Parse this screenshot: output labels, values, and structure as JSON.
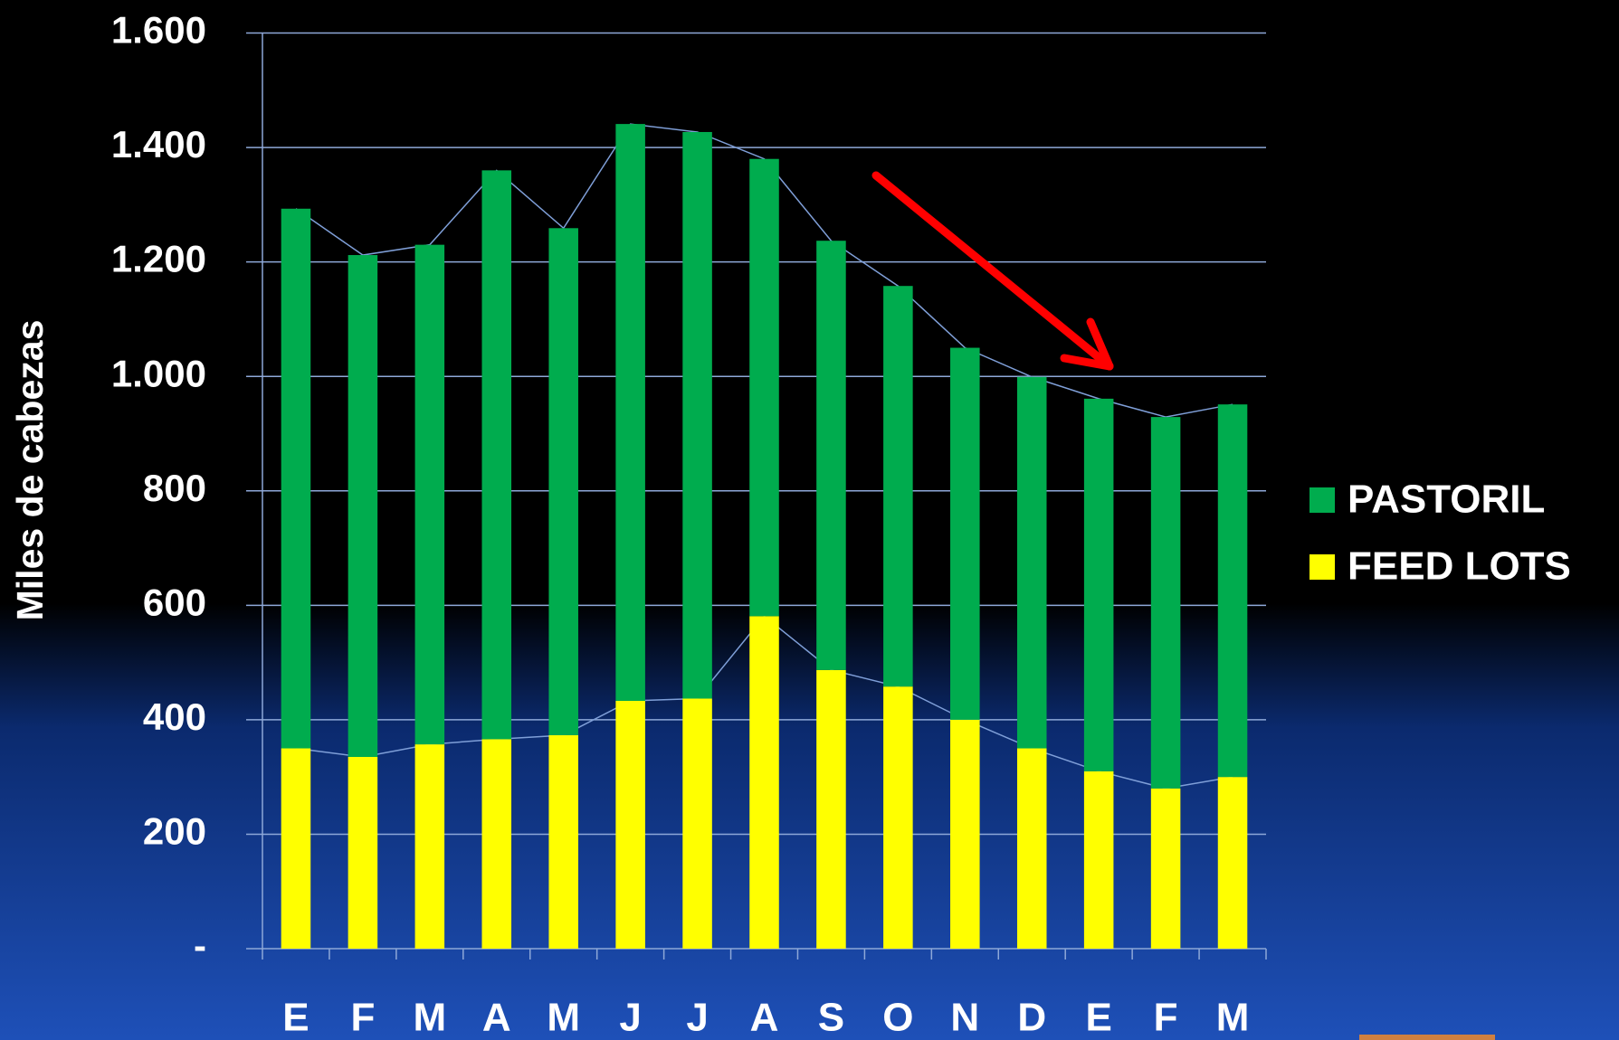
{
  "chart_data": {
    "type": "bar",
    "stacked": true,
    "ylabel": "Miles de cabezas",
    "categories": [
      "E",
      "F",
      "M",
      "A",
      "M",
      "J",
      "J",
      "A",
      "S",
      "O",
      "N",
      "D",
      "E",
      "F",
      "M"
    ],
    "series": [
      {
        "name": "FEED LOTS",
        "color": "#ffff00",
        "values": [
          350,
          335,
          357,
          366,
          373,
          433,
          437,
          581,
          487,
          458,
          400,
          350,
          310,
          280,
          300
        ]
      },
      {
        "name": "PASTORIL",
        "color": "#00ac4e",
        "values": [
          943,
          877,
          873,
          994,
          886,
          1008,
          990,
          799,
          750,
          700,
          650,
          649,
          651,
          649,
          651
        ]
      }
    ],
    "ylim": [
      0,
      1600
    ],
    "yticks": [
      {
        "value": 0,
        "label": "-"
      },
      200,
      400,
      600,
      800,
      {
        "value": 1000,
        "label": "1.000"
      },
      {
        "value": 1200,
        "label": "1.200"
      },
      {
        "value": 1400,
        "label": "1.400"
      },
      {
        "value": 1600,
        "label": "1.600"
      }
    ],
    "grid": true
  }
}
